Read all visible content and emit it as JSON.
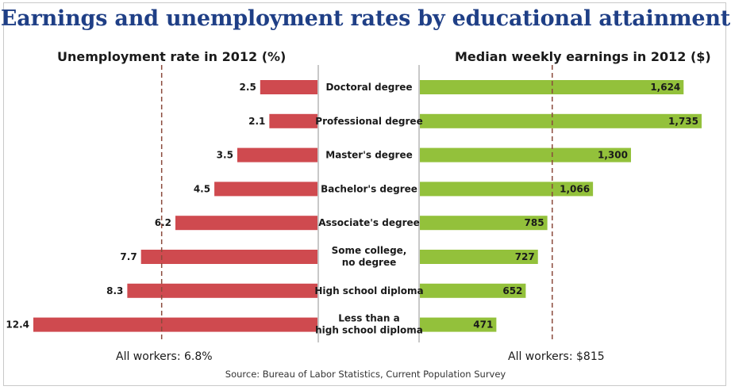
{
  "title": "Earnings and unemployment rates by educational attainment",
  "left_panel_title": "Unemployment rate in 2012 (%)",
  "right_panel_title": "Median weekly earnings in 2012 ($)",
  "left_reference_label": "All workers: 6.8%",
  "right_reference_label": "All workers: $815",
  "source": "Source: Bureau of Labor Statistics, Current Population Survey",
  "colors": {
    "unemployment": "#cf4a4f",
    "earnings": "#93c13b",
    "title": "#1f3f86",
    "reference_line": "#8b4a3c"
  },
  "chart_data": {
    "type": "bar",
    "categories": [
      [
        "Doctoral degree"
      ],
      [
        "Professional degree"
      ],
      [
        "Master's degree"
      ],
      [
        "Bachelor's degree"
      ],
      [
        "Associate's degree"
      ],
      [
        "Some college,",
        "no degree"
      ],
      [
        "High school diploma"
      ],
      [
        "Less than a",
        "high school diploma"
      ]
    ],
    "series": [
      {
        "name": "Unemployment rate in 2012 (%)",
        "values": [
          2.5,
          2.1,
          3.5,
          4.5,
          6.2,
          7.7,
          8.3,
          12.4
        ],
        "labels": [
          "2.5",
          "2.1",
          "3.5",
          "4.5",
          "6.2",
          "7.7",
          "8.3",
          "12.4"
        ],
        "reference": 6.8,
        "max": 12.4
      },
      {
        "name": "Median weekly earnings in 2012 ($)",
        "values": [
          1624,
          1735,
          1300,
          1066,
          785,
          727,
          652,
          471
        ],
        "labels": [
          "1,624",
          "1,735",
          "1,300",
          "1,066",
          "785",
          "727",
          "652",
          "471"
        ],
        "reference": 815,
        "max": 1735
      }
    ]
  }
}
